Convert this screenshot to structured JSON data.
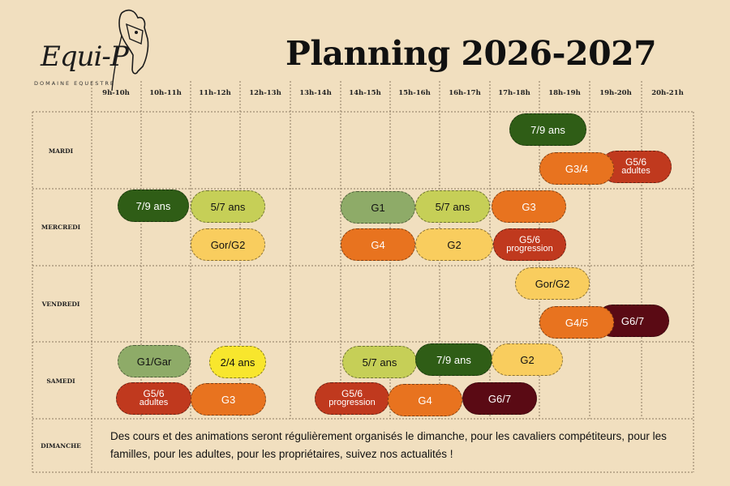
{
  "brand": {
    "name": "Equi-P",
    "subtitle": "DOMAINE EQUESTRE"
  },
  "title": "Planning 2026-2027",
  "hours": [
    "9h-10h",
    "10h-11h",
    "11h-12h",
    "12h-13h",
    "13h-14h",
    "14h-15h",
    "15h-16h",
    "16h-17h",
    "17h-18h",
    "18h-19h",
    "19h-20h",
    "20h-21h"
  ],
  "days": [
    "MARDI",
    "MERCREDI",
    "VENDREDI",
    "SAMEDI",
    "DIMANCHE"
  ],
  "sessions": {
    "mardi": [
      "7/9 ans",
      "G3/4",
      "G5/6",
      "adultes"
    ],
    "mercredi": [
      "7/9 ans",
      "5/7 ans",
      "Gor/G2",
      "G1",
      "G4",
      "5/7 ans",
      "G2",
      "G3",
      "G5/6",
      "progression"
    ],
    "vendredi": [
      "Gor/G2",
      "G4/5",
      "G6/7"
    ],
    "samedi": [
      "G1/Gar",
      "2/4 ans",
      "G5/6",
      "adultes",
      "G3",
      "5/7 ans",
      "7/9 ans",
      "G2",
      "G5/6",
      "progression",
      "G4",
      "G6/7"
    ]
  },
  "dimanche_note": "Des cours et des animations seront régulièrement organisés le dimanche, pour les cavaliers compétiteurs, pour les familles, pour les adultes, pour les propriétaires, suivez nos actualités !",
  "colors": {
    "background": "#f1dfbf",
    "dark_green": "#2f5d16",
    "lime": "#c6cf57",
    "sage": "#8eab68",
    "orange": "#e8731f",
    "yellow": "#f9cd5e",
    "bright_yellow": "#f8e62d",
    "red": "#c0391e",
    "maroon": "#5a0a14"
  }
}
